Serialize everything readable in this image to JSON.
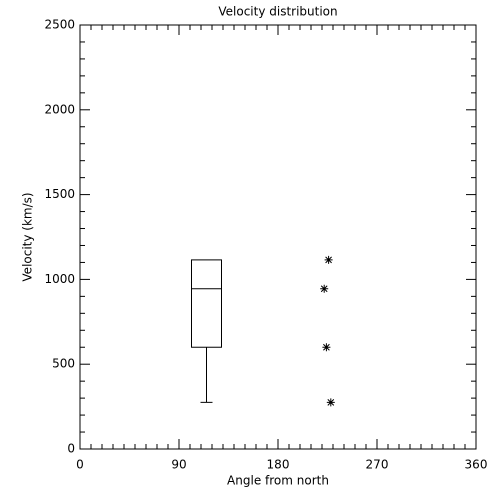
{
  "chart_data": {
    "type": "box",
    "title": "Velocity distribution",
    "xlabel": "Angle from north",
    "ylabel": "Velocity (km/s)",
    "box": {
      "x": 115,
      "min": 275,
      "q1": 600,
      "median": 945,
      "q3": 1115,
      "max": 1115
    },
    "points": {
      "x": [
        226,
        222,
        224,
        228
      ],
      "values": [
        1115,
        945,
        600,
        275
      ]
    },
    "xlim": [
      0,
      360
    ],
    "xticks": [
      0,
      90,
      180,
      270,
      360
    ],
    "ylim": [
      0,
      2500
    ],
    "yticks": [
      0,
      500,
      1000,
      1500,
      2000,
      2500
    ],
    "color": "#000000"
  }
}
